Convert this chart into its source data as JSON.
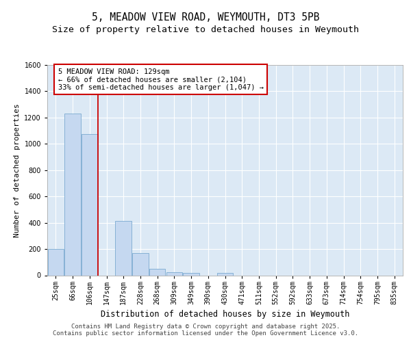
{
  "title": "5, MEADOW VIEW ROAD, WEYMOUTH, DT3 5PB",
  "subtitle": "Size of property relative to detached houses in Weymouth",
  "xlabel": "Distribution of detached houses by size in Weymouth",
  "ylabel": "Number of detached properties",
  "bar_categories": [
    "25sqm",
    "66sqm",
    "106sqm",
    "147sqm",
    "187sqm",
    "228sqm",
    "268sqm",
    "309sqm",
    "349sqm",
    "390sqm",
    "430sqm",
    "471sqm",
    "511sqm",
    "552sqm",
    "592sqm",
    "633sqm",
    "673sqm",
    "714sqm",
    "754sqm",
    "795sqm",
    "835sqm"
  ],
  "bar_values": [
    200,
    1230,
    1075,
    0,
    415,
    170,
    50,
    25,
    20,
    0,
    20,
    0,
    0,
    0,
    0,
    0,
    0,
    0,
    0,
    0,
    0
  ],
  "bar_color": "#c5d8f0",
  "bar_edge_color": "#7aaad0",
  "background_color": "#dce9f5",
  "grid_color": "#ffffff",
  "fig_background": "#ffffff",
  "vline_x": 2.5,
  "vline_color": "#cc0000",
  "annotation_text": "5 MEADOW VIEW ROAD: 129sqm\n← 66% of detached houses are smaller (2,104)\n33% of semi-detached houses are larger (1,047) →",
  "annotation_box_color": "#ffffff",
  "annotation_box_edge": "#cc0000",
  "ylim": [
    0,
    1600
  ],
  "yticks": [
    0,
    200,
    400,
    600,
    800,
    1000,
    1200,
    1400,
    1600
  ],
  "footer_line1": "Contains HM Land Registry data © Crown copyright and database right 2025.",
  "footer_line2": "Contains public sector information licensed under the Open Government Licence v3.0.",
  "title_fontsize": 10.5,
  "subtitle_fontsize": 9.5,
  "xlabel_fontsize": 8.5,
  "ylabel_fontsize": 8,
  "tick_fontsize": 7,
  "annotation_fontsize": 7.5,
  "footer_fontsize": 6.5
}
